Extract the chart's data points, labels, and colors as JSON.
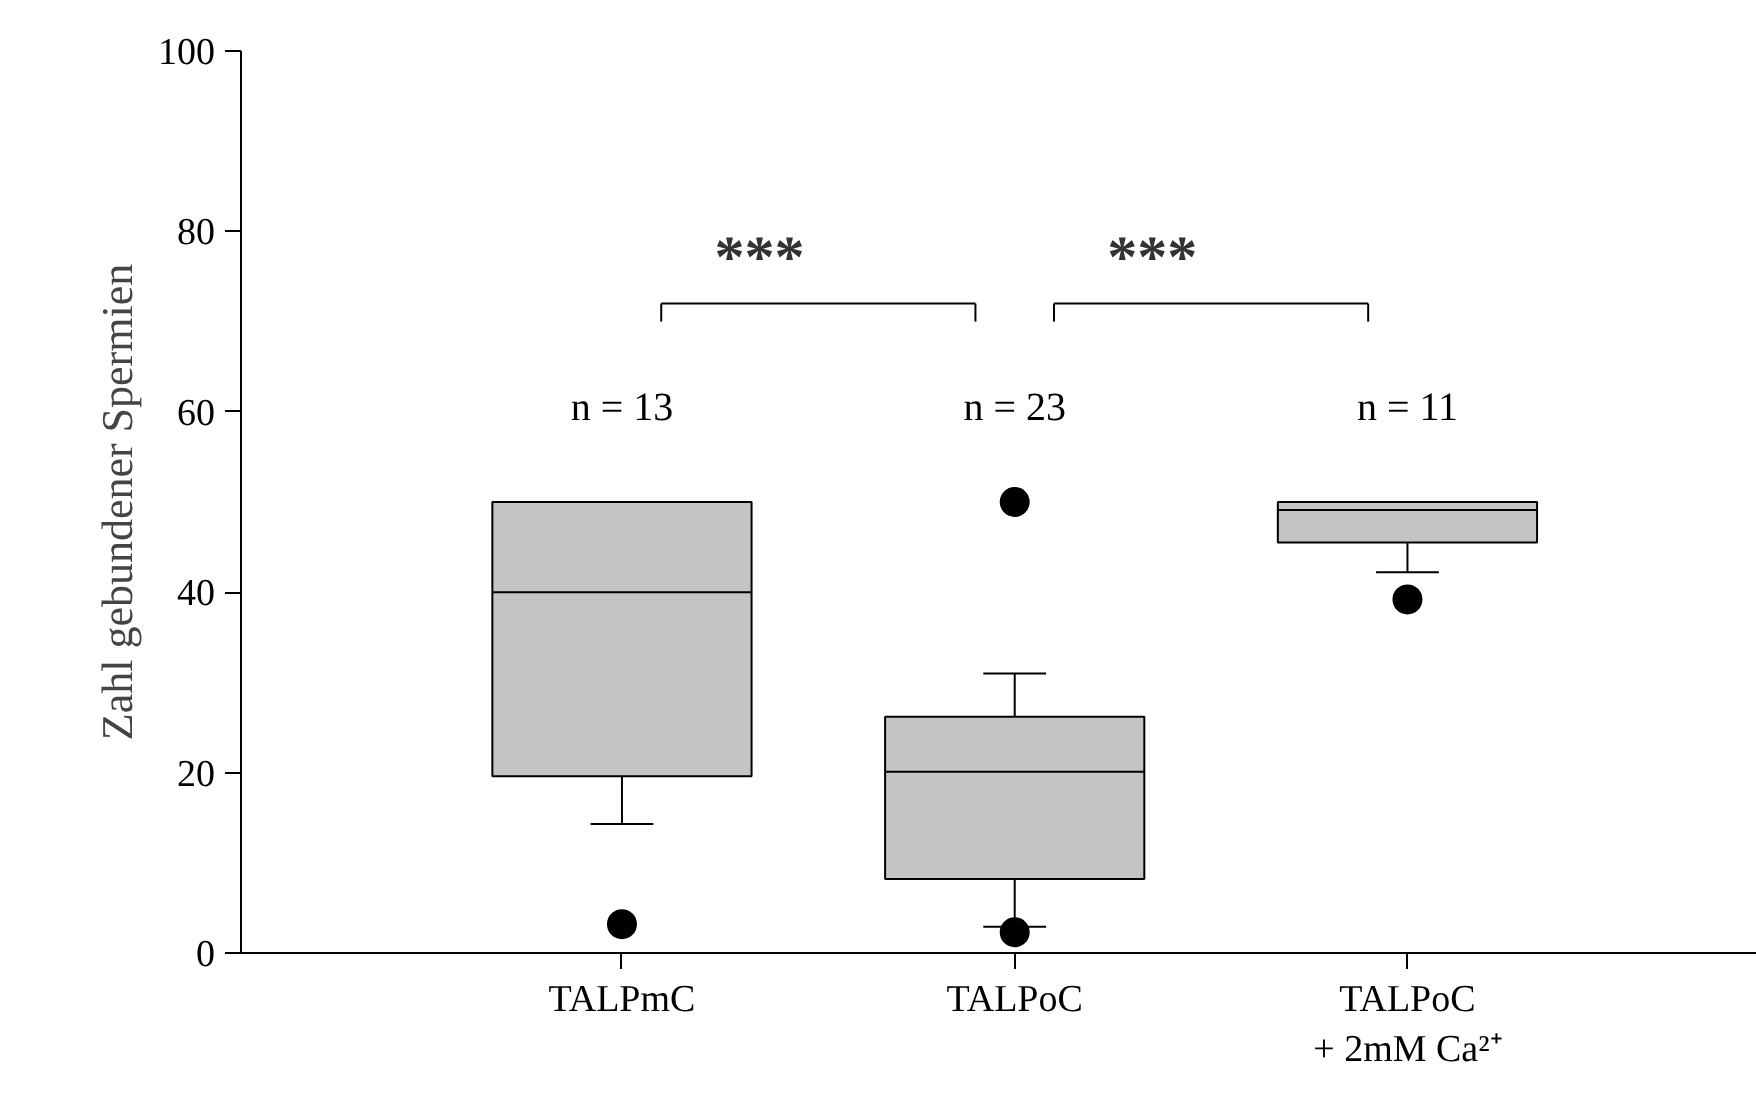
{
  "chart_data": {
    "type": "box",
    "ylabel": "Zahl gebundener Spermien",
    "categories": [
      "TALPmC",
      "TALPoC",
      "TALPoC\n+ 2mM Ca²⁺"
    ],
    "color": "#c4c4c4",
    "ylim": [
      0,
      100
    ],
    "yticks": [
      0,
      20,
      40,
      60,
      80,
      100
    ],
    "boxes": [
      {
        "low": 14.3,
        "q1": 19.6,
        "median": 40,
        "q3": 50,
        "high": 50,
        "outliers": [
          3.2
        ]
      },
      {
        "low": 2.9,
        "q1": 8.2,
        "median": 20.1,
        "q3": 26.2,
        "high": 31,
        "outliers": [
          50,
          2.3
        ]
      },
      {
        "low": 42.2,
        "q1": 45.5,
        "median": 49.1,
        "q3": 50,
        "high": 50,
        "outliers": [
          39.2
        ]
      }
    ],
    "annotations": [
      "n = 13",
      "n = 23",
      "n = 11",
      "***",
      "***"
    ]
  }
}
